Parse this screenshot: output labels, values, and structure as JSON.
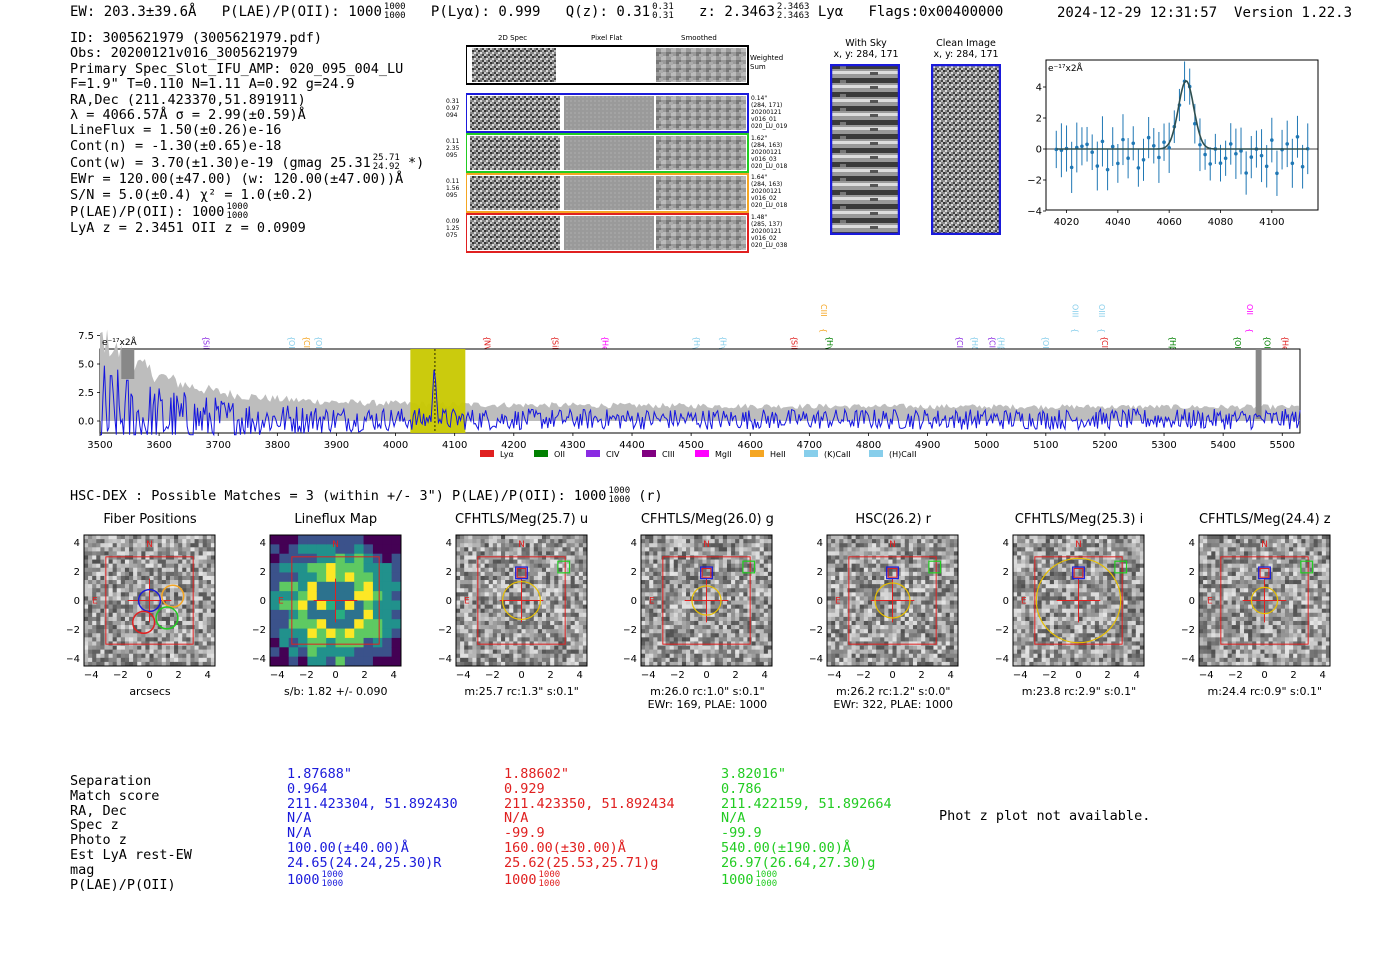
{
  "header": {
    "ew": "EW: 203.3±39.6Å",
    "plae_label": "P(LAE)/P(OII):",
    "plae_value": "1000",
    "plae_num": "1000",
    "plae_den": "1000",
    "plya": "P(Lyα): 0.999",
    "qz_label": "Q(z): 0.31",
    "qz_num": "0.31",
    "qz_den": "0.31",
    "z_label": "z: 2.3463",
    "z_num": "2.3463",
    "z_den": "2.3463",
    "z_line": "Lyα",
    "flags": "Flags:0x00400000",
    "timestamp": "2024-12-29 12:31:57",
    "version": "Version 1.22.3"
  },
  "info": {
    "lines": [
      "ID: 3005621979 (3005621979.pdf)",
      "Obs: 20200121v016_3005621979",
      "Primary Spec_Slot_IFU_AMP: 020_095_004_LU",
      "F=1.9\"  T=0.110  N=1.11  A=0.92  g=24.9",
      "RA,Dec (211.423370,51.891911)",
      "λ = 4066.57Å  σ = 2.99(±0.59)Å",
      "LineFlux = 1.50(±0.26)e-16",
      "Cont(n) = -1.30(±0.65)e-18",
      "Cont(w) = 3.70(±1.30)e-19 (gmag 25.31",
      "EWr = 120.00(±47.00) (w: 120.00(±47.00))Å",
      "S/N = 5.0(±0.4)  χ² = 1.0(±0.2)",
      "P(LAE)/P(OII): 1000",
      "LyA z = 2.3451  OII z = 0.0909"
    ],
    "gmag_num": "25.71",
    "gmag_den": "24.92",
    "gmag_tail": "*)",
    "plae_num": "1000",
    "plae_den": "1000"
  },
  "spec2d": {
    "headers": [
      "2D Spec",
      "Pixel Flat",
      "Smoothed"
    ],
    "weighted_label": "Weighted Sum",
    "fibers": [
      {
        "left": [
          "0.31",
          "0.97",
          "094"
        ],
        "right": [
          "0.14\"",
          "(284, 171)",
          "20200121",
          "v016_01",
          "020_LU_019"
        ],
        "color": "#1a1adb"
      },
      {
        "left": [
          "0.11",
          "2.35",
          "095"
        ],
        "right": [
          "1.62\"",
          "(284, 163)",
          "20200121",
          "v016_03",
          "020_LU_018"
        ],
        "color": "#22cc22"
      },
      {
        "left": [
          "0.11",
          "1.56",
          "095"
        ],
        "right": [
          "1.64\"",
          "(284, 163)",
          "20200121",
          "v016_02",
          "020_LU_018"
        ],
        "color": "#f5a623"
      },
      {
        "left": [
          "0.09",
          "1.25",
          "075"
        ],
        "right": [
          "1.48\"",
          "(285, 137)",
          "20200121",
          "v016_02",
          "020_LU_038"
        ],
        "color": "#e02020"
      }
    ]
  },
  "sky": {
    "with_sky_title": "With Sky",
    "with_sky_xy": "x, y: 284, 171",
    "clean_title": "Clean Image",
    "clean_xy": "x, y: 284, 171"
  },
  "zoom_plot": {
    "unit": "e⁻¹⁷x2Å",
    "x_ticks": [
      "4020",
      "4040",
      "4060",
      "4080",
      "4100"
    ],
    "y_ticks": [
      "4",
      "2",
      "0",
      "−2",
      "−4"
    ]
  },
  "line_labels": [
    {
      "name": "SiIV",
      "wl": 3670,
      "color": "#8a2be2",
      "row": 2
    },
    {
      "name": "OII",
      "wl": 3815,
      "color": "#87ceeb",
      "row": 2
    },
    {
      "name": "CIV",
      "wl": 3840,
      "color": "#f5a623",
      "row": 2
    },
    {
      "name": "OII",
      "wl": 3860,
      "color": "#87ceeb",
      "row": 2
    },
    {
      "name": "NV",
      "wl": 4145,
      "color": "#e02020",
      "row": 2
    },
    {
      "name": "SiII",
      "wl": 4260,
      "color": "#e02020",
      "row": 2
    },
    {
      "name": "HeII",
      "wl": 4345,
      "color": "#ff00ff",
      "row": 2
    },
    {
      "name": "Hγ",
      "wl": 4500,
      "color": "#87ceeb",
      "row": 2
    },
    {
      "name": "Hγ",
      "wl": 4545,
      "color": "#87ceeb",
      "row": 2
    },
    {
      "name": "SiIV",
      "wl": 4665,
      "color": "#e02020",
      "row": 2
    },
    {
      "name": "CIII",
      "wl": 4715,
      "color": "#f5a623",
      "row": 1
    },
    {
      "name": "Hγ",
      "wl": 4725,
      "color": "#008000",
      "row": 2
    },
    {
      "name": "CII",
      "wl": 4945,
      "color": "#8a2be2",
      "row": 2
    },
    {
      "name": "Hδ",
      "wl": 4970,
      "color": "#87ceeb",
      "row": 2
    },
    {
      "name": "CIII",
      "wl": 5000,
      "color": "#8a2be2",
      "row": 2
    },
    {
      "name": "Hβ",
      "wl": 5015,
      "color": "#87ceeb",
      "row": 2
    },
    {
      "name": "OIII",
      "wl": 5090,
      "color": "#87ceeb",
      "row": 2
    },
    {
      "name": "OIII",
      "wl": 5140,
      "color": "#87ceeb",
      "row": 1
    },
    {
      "name": "OIII",
      "wl": 5185,
      "color": "#87ceeb",
      "row": 1
    },
    {
      "name": "CIV",
      "wl": 5190,
      "color": "#e02020",
      "row": 2
    },
    {
      "name": "Hβ",
      "wl": 5305,
      "color": "#008000",
      "row": 2
    },
    {
      "name": "OIII",
      "wl": 5415,
      "color": "#008000",
      "row": 2
    },
    {
      "name": "OII",
      "wl": 5435,
      "color": "#ff00ff",
      "row": 1
    },
    {
      "name": "OIII",
      "wl": 5465,
      "color": "#008000",
      "row": 2
    },
    {
      "name": "HeII",
      "wl": 5495,
      "color": "#e02020",
      "row": 2
    }
  ],
  "full_spec": {
    "unit": "e⁻¹⁷x2Å",
    "y_ticks": [
      "7.5",
      "5.0",
      "2.5",
      "0.0"
    ],
    "x_ticks": [
      "3500",
      "3600",
      "3700",
      "3800",
      "3900",
      "4000",
      "4100",
      "4200",
      "4300",
      "4400",
      "4500",
      "4600",
      "4700",
      "4800",
      "4900",
      "5000",
      "5100",
      "5200",
      "5300",
      "5400",
      "5500"
    ],
    "legend": [
      {
        "name": "Lyα",
        "color": "#e02020"
      },
      {
        "name": "OII",
        "color": "#008000"
      },
      {
        "name": "CIV",
        "color": "#8a2be2"
      },
      {
        "name": "CIII",
        "color": "#800080"
      },
      {
        "name": "MgII",
        "color": "#ff00ff"
      },
      {
        "name": "HeII",
        "color": "#f5a623"
      },
      {
        "name": "(K)CaII",
        "color": "#87ceeb"
      },
      {
        "name": "(H)CaII",
        "color": "#87ceeb"
      }
    ]
  },
  "hsc": {
    "text": "HSC-DEX : Possible Matches = 3 (within +/- 3\")  P(LAE)/P(OII): 1000",
    "num": "1000",
    "den": "1000",
    "tail": "(r)"
  },
  "cutouts": [
    {
      "title": "Fiber Positions",
      "cap1": "arcsecs",
      "cap2": ""
    },
    {
      "title": "Lineflux Map",
      "cap1": "s/b: 1.82 +/- 0.090",
      "cap2": ""
    },
    {
      "title": "CFHTLS/Meg(25.7) u",
      "cap1": "m:25.7 rc:1.3\"  s:0.1\"",
      "cap2": ""
    },
    {
      "title": "CFHTLS/Meg(26.0) g",
      "cap1": "m:26.0 rc:1.0\"  s:0.1\"",
      "cap2": "EWr: 169, PLAE: 1000"
    },
    {
      "title": "HSC(26.2) r",
      "cap1": "m:26.2 rc:1.2\"  s:0.0\"",
      "cap2": "EWr: 322, PLAE: 1000"
    },
    {
      "title": "CFHTLS/Meg(25.3) i",
      "cap1": "m:23.8 rc:2.9\"  s:0.1\"",
      "cap2": ""
    },
    {
      "title": "CFHTLS/Meg(24.4) z",
      "cap1": "m:24.4 rc:0.9\"  s:0.1\"",
      "cap2": ""
    }
  ],
  "cut_ticks": [
    "−4",
    "−2",
    "0",
    "2",
    "4"
  ],
  "cut_yticks": [
    "4",
    "2",
    "0",
    "−2",
    "−4"
  ],
  "compass": {
    "n": "N",
    "e": "E"
  },
  "matches": {
    "row_labels": [
      "Separation",
      "Match score",
      "RA, Dec",
      "Spec z",
      "Photo z",
      "Est LyA rest-EW",
      "mag",
      "P(LAE)/P(OII)"
    ],
    "columns": [
      {
        "color": "#1a1adb",
        "values": [
          "1.87688\"",
          "0.964",
          "211.423304, 51.892430",
          "N/A",
          "N/A",
          "100.00(±40.00)Å",
          "24.65(24.24,25.30)R",
          "1000"
        ],
        "num": "1000",
        "den": "1000"
      },
      {
        "color": "#e02020",
        "values": [
          "1.88602\"",
          "0.929",
          "211.423350, 51.892434",
          "N/A",
          "-99.9",
          "160.00(±30.00)Å",
          "25.62(25.53,25.71)g",
          "1000"
        ],
        "num": "1000",
        "den": "1000"
      },
      {
        "color": "#22cc22",
        "values": [
          "3.82016\"",
          "0.786",
          "211.422159, 51.892664",
          "N/A",
          "-99.9",
          "540.00(±190.00)Å",
          "26.97(26.64,27.30)g",
          "1000"
        ],
        "num": "1000",
        "den": "1000"
      }
    ],
    "phot_z_note": "Phot z plot not available."
  }
}
